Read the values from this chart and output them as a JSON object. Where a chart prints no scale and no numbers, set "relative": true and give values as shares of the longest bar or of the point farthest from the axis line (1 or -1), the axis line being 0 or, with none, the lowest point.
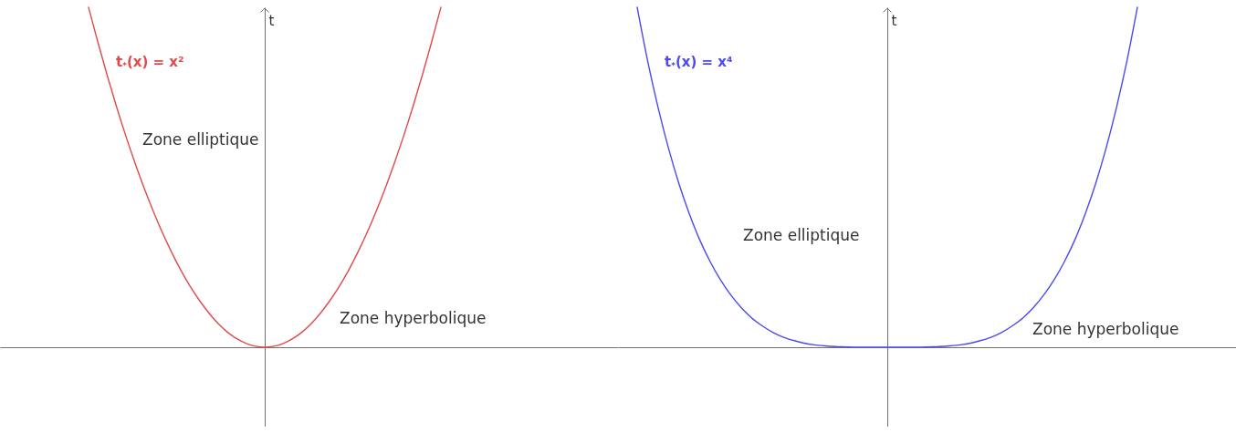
{
  "chart_data": [
    {
      "type": "line",
      "relative": true,
      "ylabel": "t",
      "categories": [
        null,
        null,
        null,
        null,
        null,
        null,
        null,
        null,
        null,
        null,
        null,
        null,
        null,
        null,
        null,
        null,
        null,
        null,
        null,
        null,
        null,
        null,
        null,
        null,
        null,
        null,
        null,
        null,
        null,
        null,
        null,
        null,
        null,
        null,
        null,
        null,
        null,
        null,
        null
      ],
      "series": [
        {
          "name": "t$_{*}$(x) = x²",
          "color": "#e04a4a",
          "values": [
            1,
            0.898,
            0.801,
            0.709,
            0.623,
            0.543,
            0.468,
            0.399,
            0.335,
            0.277,
            0.224,
            0.177,
            0.136,
            0.1,
            0.069,
            0.044,
            0.025,
            0.011,
            0.003,
            0,
            0.003,
            0.011,
            0.025,
            0.044,
            0.069,
            0.1,
            0.136,
            0.177,
            0.224,
            0.277,
            0.335,
            0.399,
            0.468,
            0.543,
            0.623,
            0.709,
            0.801,
            0.898,
            1
          ]
        }
      ],
      "annotations": [
        "Zone elliptique",
        "Zone hyperbolique"
      ]
    },
    {
      "type": "line",
      "relative": true,
      "ylabel": "t",
      "categories": [
        null,
        null,
        null,
        null,
        null,
        null,
        null,
        null,
        null,
        null,
        null,
        null,
        null,
        null,
        null,
        null,
        null,
        null,
        null,
        null,
        null,
        null,
        null,
        null,
        null,
        null,
        null,
        null,
        null,
        null,
        null,
        null,
        null,
        null,
        null,
        null,
        null,
        null,
        null,
        null,
        null,
        null,
        null,
        null,
        null,
        null,
        null,
        null,
        null
      ],
      "series": [
        {
          "name": "t$_{*}$(x) = x⁴",
          "color": "#4a4af0",
          "values": [
            1,
            0.843,
            0.706,
            0.586,
            0.482,
            0.393,
            0.316,
            0.252,
            0.198,
            0.153,
            0.116,
            0.086,
            0.063,
            0.044,
            0.03,
            0.02,
            0.012,
            0.007,
            0.004,
            0.002,
            0.001,
            0,
            0,
            0,
            0,
            0,
            0,
            0,
            0.001,
            0.002,
            0.004,
            0.007,
            0.012,
            0.02,
            0.03,
            0.044,
            0.063,
            0.086,
            0.116,
            0.153,
            0.198,
            0.252,
            0.316,
            0.393,
            0.482,
            0.586,
            0.706,
            0.843,
            1
          ]
        }
      ],
      "annotations": [
        "Zone elliptique",
        "Zone hyperbolique"
      ]
    }
  ]
}
